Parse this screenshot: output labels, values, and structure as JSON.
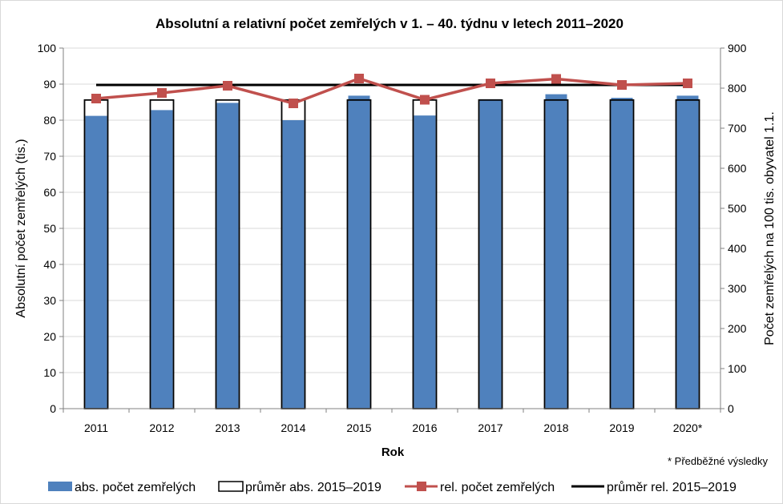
{
  "chart_data": {
    "type": "bar",
    "title": "Absolutní a relativní počet zemřelých v 1. – 40. týdnu v letech 2011–2020",
    "xlabel": "Rok",
    "ylabel": "Absolutní počet zemřelých (tis.)",
    "y2label": "Počet zemřelých na 100 tis. obyvatel 1.1.",
    "note": "* Předběžné výsledky",
    "categories": [
      "2011",
      "2012",
      "2013",
      "2014",
      "2015",
      "2016",
      "2017",
      "2018",
      "2019",
      "2020*"
    ],
    "ylim": [
      0,
      100
    ],
    "yticks": [
      "0",
      "10",
      "20",
      "30",
      "40",
      "50",
      "60",
      "70",
      "80",
      "90",
      "100"
    ],
    "y2lim": [
      0,
      900
    ],
    "y2ticks": [
      "0",
      "100",
      "200",
      "300",
      "400",
      "500",
      "600",
      "700",
      "800",
      "900"
    ],
    "grid": true,
    "legend_position": "bottom",
    "series": [
      {
        "name": "abs. počet zemřelých",
        "kind": "bar",
        "axis": "left",
        "color": "#4f81bd",
        "values": [
          81.2,
          82.8,
          84.8,
          80.0,
          86.8,
          81.3,
          85.8,
          87.2,
          86.2,
          86.8
        ]
      },
      {
        "name": "průměr abs. 2015–2019",
        "kind": "bar-outline",
        "axis": "left",
        "color": "#000000",
        "values": [
          85.6,
          85.6,
          85.6,
          85.6,
          85.6,
          85.6,
          85.6,
          85.6,
          85.6,
          85.6
        ]
      },
      {
        "name": "rel. počet zemřelých",
        "kind": "line-marker",
        "axis": "right",
        "color": "#c0504d",
        "values": [
          774,
          788,
          806,
          762,
          824,
          771,
          812,
          823,
          808,
          812
        ]
      },
      {
        "name": "průměr rel. 2015–2019",
        "kind": "line",
        "axis": "right",
        "color": "#000000",
        "values": [
          808,
          808,
          808,
          808,
          808,
          808,
          808,
          808,
          808,
          808
        ]
      }
    ]
  }
}
